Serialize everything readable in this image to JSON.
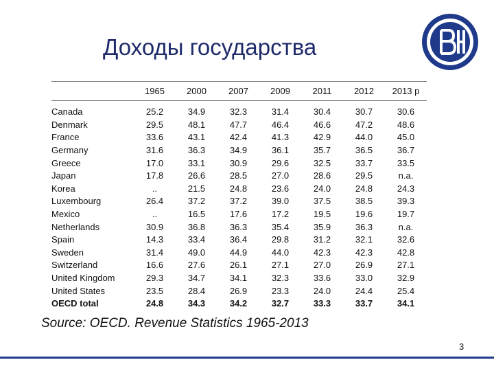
{
  "slide": {
    "title": "Доходы государства",
    "source": "Source: OECD. Revenue Statistics 1965-2013",
    "page_number": "3"
  },
  "logo": {
    "label": "ВШЭ"
  },
  "table": {
    "columns": [
      "1965",
      "2000",
      "2007",
      "2009",
      "2011",
      "2012",
      "2013 p"
    ],
    "rows": [
      {
        "country": "Canada",
        "values": [
          "25.2",
          "34.9",
          "32.3",
          "31.4",
          "30.4",
          "30.7",
          "30.6"
        ]
      },
      {
        "country": "Denmark",
        "values": [
          "29.5",
          "48.1",
          "47.7",
          "46.4",
          "46.6",
          "47.2",
          "48.6"
        ]
      },
      {
        "country": "France",
        "values": [
          "33.6",
          "43.1",
          "42.4",
          "41.3",
          "42.9",
          "44.0",
          "45.0"
        ]
      },
      {
        "country": "Germany",
        "values": [
          "31.6",
          "36.3",
          "34.9",
          "36.1",
          "35.7",
          "36.5",
          "36.7"
        ]
      },
      {
        "country": "Greece",
        "values": [
          "17.0",
          "33.1",
          "30.9",
          "29.6",
          "32.5",
          "33.7",
          "33.5"
        ]
      },
      {
        "country": "Japan",
        "values": [
          "17.8",
          "26.6",
          "28.5",
          "27.0",
          "28.6",
          "29.5",
          "n.a."
        ]
      },
      {
        "country": "Korea",
        "values": [
          "..",
          "21.5",
          "24.8",
          "23.6",
          "24.0",
          "24.8",
          "24.3"
        ]
      },
      {
        "country": "Luxembourg",
        "values": [
          "26.4",
          "37.2",
          "37.2",
          "39.0",
          "37.5",
          "38.5",
          "39.3"
        ]
      },
      {
        "country": "Mexico",
        "values": [
          "..",
          "16.5",
          "17.6",
          "17.2",
          "19.5",
          "19.6",
          "19.7"
        ]
      },
      {
        "country": "Netherlands",
        "values": [
          "30.9",
          "36.8",
          "36.3",
          "35.4",
          "35.9",
          "36.3",
          "n.a."
        ]
      },
      {
        "country": "Spain",
        "values": [
          "14.3",
          "33.4",
          "36.4",
          "29.8",
          "31.2",
          "32.1",
          "32.6"
        ]
      },
      {
        "country": "Sweden",
        "values": [
          "31.4",
          "49.0",
          "44.9",
          "44.0",
          "42.3",
          "42.3",
          "42.8"
        ]
      },
      {
        "country": "Switzerland",
        "values": [
          "16.6",
          "27.6",
          "26.1",
          "27.1",
          "27.0",
          "26.9",
          "27.1"
        ]
      },
      {
        "country": "United Kingdom",
        "values": [
          "29.3",
          "34.7",
          "34.1",
          "32.3",
          "33.6",
          "33.0",
          "32.9"
        ]
      },
      {
        "country": "United States",
        "values": [
          "23.5",
          "28.4",
          "26.9",
          "23.3",
          "24.0",
          "24.4",
          "25.4"
        ]
      }
    ],
    "total": {
      "country": "OECD total",
      "values": [
        "24.8",
        "34.3",
        "34.2",
        "32.7",
        "33.3",
        "33.7",
        "34.1"
      ]
    }
  }
}
